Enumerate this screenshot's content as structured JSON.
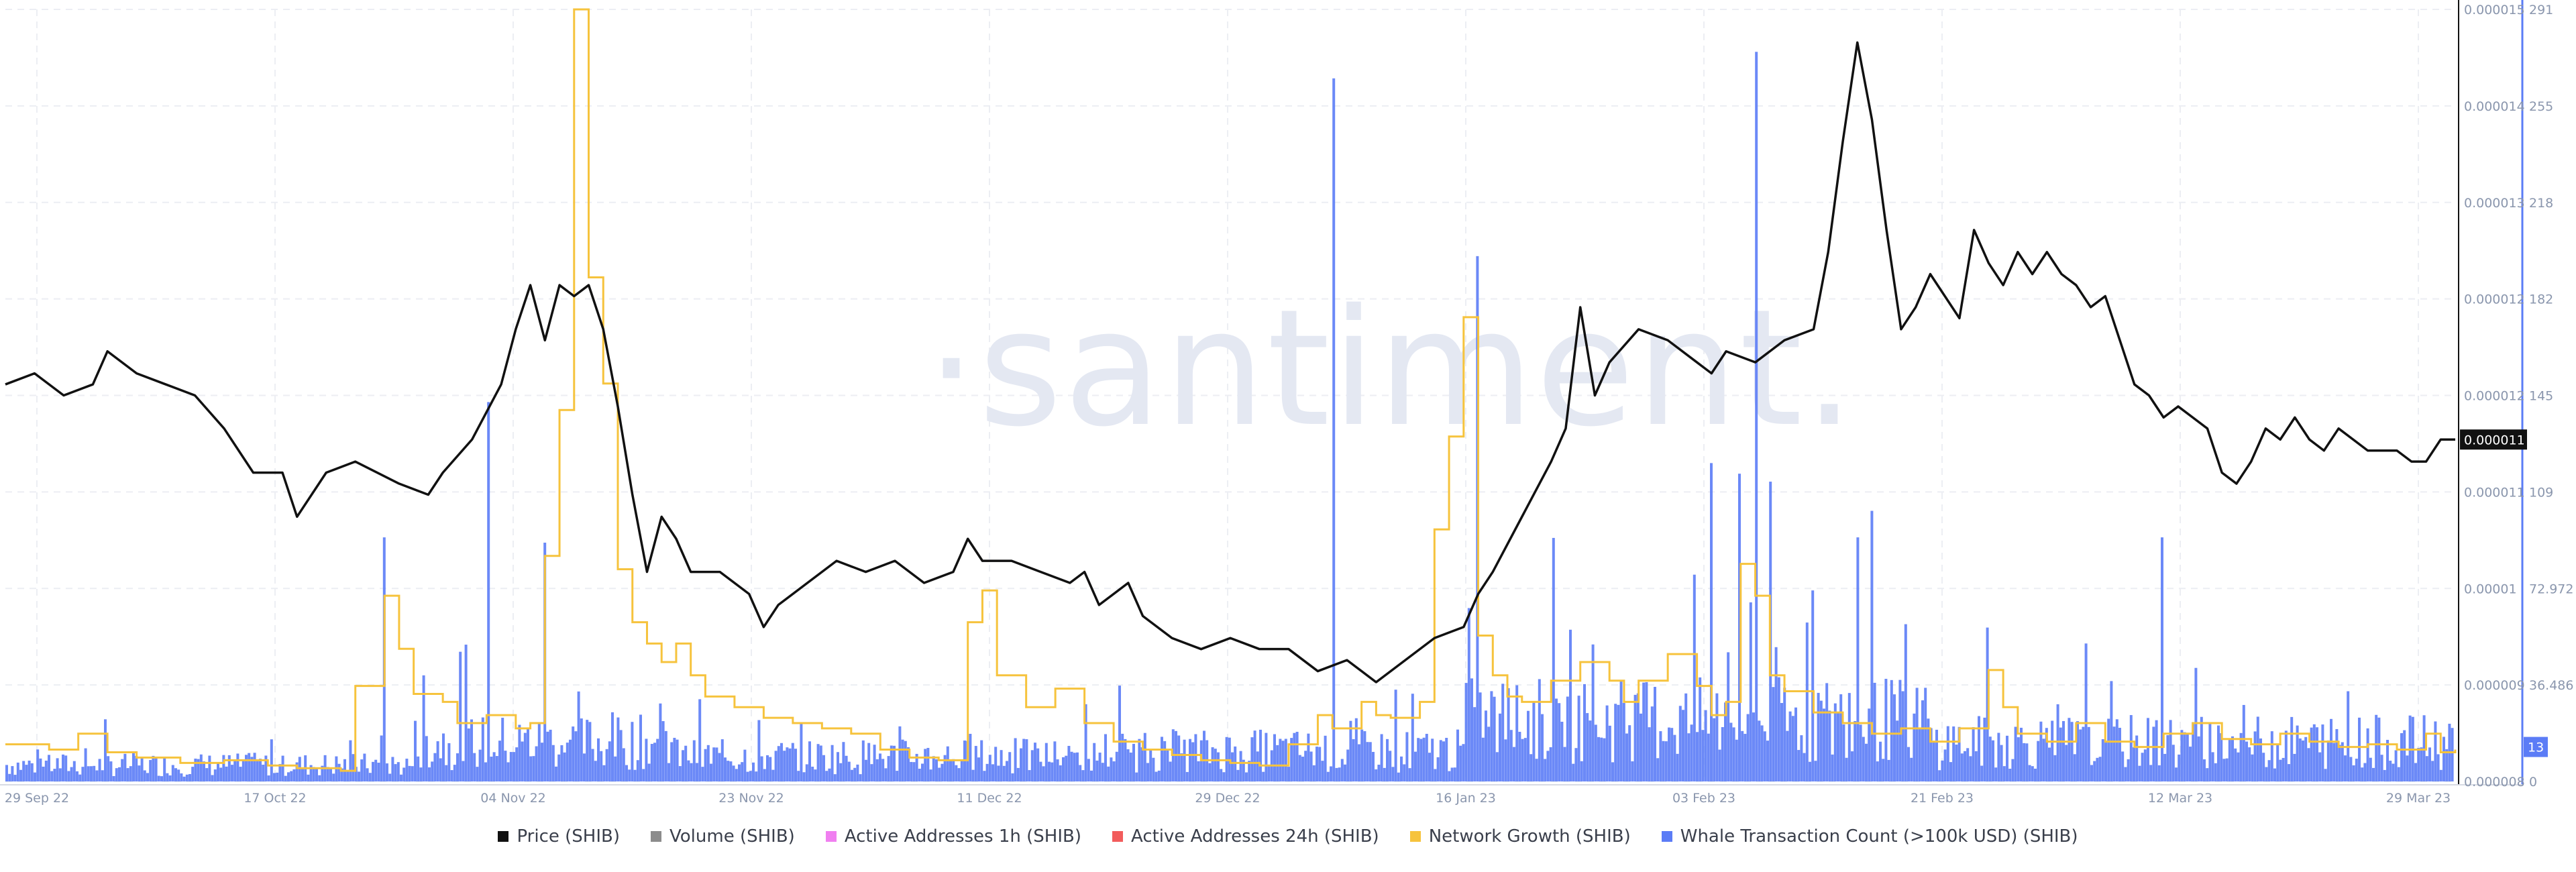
{
  "watermark": "·santiment.",
  "chart_data": {
    "type": "line",
    "x_tick_labels": [
      "29 Sep 22",
      "17 Oct 22",
      "04 Nov 22",
      "23 Nov 22",
      "11 Dec 22",
      "29 Dec 22",
      "16 Jan 23",
      "03 Feb 23",
      "21 Feb 23",
      "12 Mar 23",
      "29 Mar 23"
    ],
    "price_axis": {
      "ylim": [
        8e-06,
        1.5e-05
      ],
      "tick_labels": [
        "0.000015",
        "0.000014",
        "0.000013",
        "0.000012",
        "0.000012",
        "0.000011",
        "0.00001",
        "0.000009",
        "0.000008"
      ]
    },
    "whale_axis": {
      "ylim": [
        0,
        291
      ],
      "tick_labels": [
        "291",
        "255",
        "218",
        "182",
        "145",
        "109",
        "72.972",
        "36.486",
        "0"
      ]
    },
    "current_price_label": "0.000011",
    "current_whale_label": "13",
    "legend_position": "bottom",
    "grid": true,
    "legend": [
      {
        "name": "Price (SHIB)",
        "color": "#111111"
      },
      {
        "name": "Volume (SHIB)",
        "color": "#8c8c8c"
      },
      {
        "name": "Active Addresses 1h (SHIB)",
        "color": "#f07ff0"
      },
      {
        "name": "Active Addresses 24h (SHIB)",
        "color": "#f25c5c"
      },
      {
        "name": "Network Growth (SHIB)",
        "color": "#f6c33d"
      },
      {
        "name": "Whale Transaction Count (>100k USD) (SHIB)",
        "color": "#5b7cf6"
      }
    ],
    "series": [
      {
        "name": "Price (SHIB)",
        "color": "#111111",
        "axis": "price",
        "points": [
          [
            0,
            1.16e-05
          ],
          [
            2,
            1.17e-05
          ],
          [
            4,
            1.15e-05
          ],
          [
            6,
            1.16e-05
          ],
          [
            7,
            1.19e-05
          ],
          [
            9,
            1.17e-05
          ],
          [
            11,
            1.16e-05
          ],
          [
            13,
            1.15e-05
          ],
          [
            15,
            1.12e-05
          ],
          [
            17,
            1.08e-05
          ],
          [
            19,
            1.08e-05
          ],
          [
            20,
            1.04e-05
          ],
          [
            22,
            1.08e-05
          ],
          [
            24,
            1.09e-05
          ],
          [
            27,
            1.07e-05
          ],
          [
            29,
            1.06e-05
          ],
          [
            30,
            1.08e-05
          ],
          [
            32,
            1.11e-05
          ],
          [
            34,
            1.16e-05
          ],
          [
            35,
            1.21e-05
          ],
          [
            36,
            1.25e-05
          ],
          [
            37,
            1.2e-05
          ],
          [
            38,
            1.25e-05
          ],
          [
            39,
            1.24e-05
          ],
          [
            40,
            1.25e-05
          ],
          [
            41,
            1.21e-05
          ],
          [
            42,
            1.14e-05
          ],
          [
            43,
            1.06e-05
          ],
          [
            44,
            9.9e-06
          ],
          [
            45,
            1.04e-05
          ],
          [
            46,
            1.02e-05
          ],
          [
            47,
            9.9e-06
          ],
          [
            49,
            9.9e-06
          ],
          [
            51,
            9.7e-06
          ],
          [
            52,
            9.4e-06
          ],
          [
            53,
            9.6e-06
          ],
          [
            55,
            9.8e-06
          ],
          [
            57,
            1e-05
          ],
          [
            59,
            9.9e-06
          ],
          [
            61,
            1e-05
          ],
          [
            63,
            9.8e-06
          ],
          [
            65,
            9.9e-06
          ],
          [
            66,
            1.02e-05
          ],
          [
            67,
            1e-05
          ],
          [
            69,
            1e-05
          ],
          [
            71,
            9.9e-06
          ],
          [
            73,
            9.8e-06
          ],
          [
            74,
            9.9e-06
          ],
          [
            75,
            9.6e-06
          ],
          [
            77,
            9.8e-06
          ],
          [
            78,
            9.5e-06
          ],
          [
            80,
            9.3e-06
          ],
          [
            82,
            9.2e-06
          ],
          [
            84,
            9.3e-06
          ],
          [
            86,
            9.2e-06
          ],
          [
            88,
            9.2e-06
          ],
          [
            90,
            9e-06
          ],
          [
            92,
            9.1e-06
          ],
          [
            94,
            8.9e-06
          ],
          [
            96,
            9.1e-06
          ],
          [
            98,
            9.3e-06
          ],
          [
            100,
            9.4e-06
          ],
          [
            101,
            9.7e-06
          ],
          [
            102,
            9.9e-06
          ],
          [
            104,
            1.04e-05
          ],
          [
            106,
            1.09e-05
          ],
          [
            107,
            1.12e-05
          ],
          [
            108,
            1.23e-05
          ],
          [
            109,
            1.15e-05
          ],
          [
            110,
            1.18e-05
          ],
          [
            112,
            1.21e-05
          ],
          [
            114,
            1.2e-05
          ],
          [
            116,
            1.18e-05
          ],
          [
            117,
            1.17e-05
          ],
          [
            118,
            1.19e-05
          ],
          [
            120,
            1.18e-05
          ],
          [
            122,
            1.2e-05
          ],
          [
            124,
            1.21e-05
          ],
          [
            125,
            1.28e-05
          ],
          [
            126,
            1.38e-05
          ],
          [
            127,
            1.47e-05
          ],
          [
            128,
            1.4e-05
          ],
          [
            129,
            1.3e-05
          ],
          [
            130,
            1.21e-05
          ],
          [
            131,
            1.23e-05
          ],
          [
            132,
            1.26e-05
          ],
          [
            133,
            1.24e-05
          ],
          [
            134,
            1.22e-05
          ],
          [
            135,
            1.3e-05
          ],
          [
            136,
            1.27e-05
          ],
          [
            137,
            1.25e-05
          ],
          [
            138,
            1.28e-05
          ],
          [
            139,
            1.26e-05
          ],
          [
            140,
            1.28e-05
          ],
          [
            141,
            1.26e-05
          ],
          [
            142,
            1.25e-05
          ],
          [
            143,
            1.23e-05
          ],
          [
            144,
            1.24e-05
          ],
          [
            145,
            1.2e-05
          ],
          [
            146,
            1.16e-05
          ],
          [
            147,
            1.15e-05
          ],
          [
            148,
            1.13e-05
          ],
          [
            149,
            1.14e-05
          ],
          [
            150,
            1.13e-05
          ],
          [
            151,
            1.12e-05
          ],
          [
            152,
            1.08e-05
          ],
          [
            153,
            1.07e-05
          ],
          [
            154,
            1.09e-05
          ],
          [
            155,
            1.12e-05
          ],
          [
            156,
            1.11e-05
          ],
          [
            157,
            1.13e-05
          ],
          [
            158,
            1.11e-05
          ],
          [
            159,
            1.1e-05
          ],
          [
            160,
            1.12e-05
          ],
          [
            161,
            1.11e-05
          ],
          [
            162,
            1.1e-05
          ],
          [
            163,
            1.1e-05
          ],
          [
            164,
            1.1e-05
          ],
          [
            165,
            1.09e-05
          ],
          [
            166,
            1.09e-05
          ],
          [
            167,
            1.11e-05
          ],
          [
            168,
            1.11e-05
          ]
        ]
      },
      {
        "name": "Network Growth (SHIB)",
        "color": "#f6c33d",
        "axis": "whale",
        "points": [
          [
            0,
            14
          ],
          [
            3,
            12
          ],
          [
            5,
            18
          ],
          [
            7,
            11
          ],
          [
            9,
            9
          ],
          [
            12,
            7
          ],
          [
            15,
            8
          ],
          [
            18,
            6
          ],
          [
            20,
            5
          ],
          [
            23,
            4
          ],
          [
            24,
            36
          ],
          [
            26,
            70
          ],
          [
            27,
            50
          ],
          [
            28,
            33
          ],
          [
            30,
            30
          ],
          [
            31,
            22
          ],
          [
            33,
            25
          ],
          [
            35,
            20
          ],
          [
            36,
            22
          ],
          [
            37,
            85
          ],
          [
            38,
            140
          ],
          [
            39,
            291
          ],
          [
            40,
            190
          ],
          [
            41,
            150
          ],
          [
            42,
            80
          ],
          [
            43,
            60
          ],
          [
            44,
            52
          ],
          [
            45,
            45
          ],
          [
            46,
            52
          ],
          [
            47,
            40
          ],
          [
            48,
            32
          ],
          [
            50,
            28
          ],
          [
            52,
            24
          ],
          [
            54,
            22
          ],
          [
            56,
            20
          ],
          [
            58,
            18
          ],
          [
            60,
            12
          ],
          [
            62,
            9
          ],
          [
            64,
            8
          ],
          [
            66,
            60
          ],
          [
            67,
            72
          ],
          [
            68,
            40
          ],
          [
            70,
            28
          ],
          [
            72,
            35
          ],
          [
            74,
            22
          ],
          [
            76,
            15
          ],
          [
            78,
            12
          ],
          [
            80,
            10
          ],
          [
            82,
            8
          ],
          [
            84,
            7
          ],
          [
            86,
            6
          ],
          [
            88,
            14
          ],
          [
            90,
            25
          ],
          [
            91,
            20
          ],
          [
            93,
            30
          ],
          [
            94,
            25
          ],
          [
            95,
            24
          ],
          [
            97,
            30
          ],
          [
            98,
            95
          ],
          [
            99,
            130
          ],
          [
            100,
            175
          ],
          [
            101,
            55
          ],
          [
            102,
            40
          ],
          [
            103,
            32
          ],
          [
            104,
            30
          ],
          [
            106,
            38
          ],
          [
            108,
            45
          ],
          [
            110,
            38
          ],
          [
            111,
            30
          ],
          [
            112,
            38
          ],
          [
            114,
            48
          ],
          [
            116,
            36
          ],
          [
            117,
            25
          ],
          [
            118,
            30
          ],
          [
            119,
            82
          ],
          [
            120,
            70
          ],
          [
            121,
            40
          ],
          [
            122,
            34
          ],
          [
            124,
            26
          ],
          [
            126,
            22
          ],
          [
            128,
            18
          ],
          [
            130,
            20
          ],
          [
            132,
            15
          ],
          [
            134,
            20
          ],
          [
            136,
            42
          ],
          [
            137,
            28
          ],
          [
            138,
            18
          ],
          [
            140,
            15
          ],
          [
            142,
            22
          ],
          [
            144,
            15
          ],
          [
            146,
            13
          ],
          [
            148,
            18
          ],
          [
            150,
            22
          ],
          [
            152,
            16
          ],
          [
            154,
            14
          ],
          [
            156,
            18
          ],
          [
            158,
            15
          ],
          [
            160,
            13
          ],
          [
            162,
            14
          ],
          [
            164,
            12
          ],
          [
            166,
            18
          ],
          [
            167,
            11
          ],
          [
            168,
            12
          ]
        ]
      },
      {
        "name": "Whale Transaction Count (>100k USD) (SHIB)",
        "color": "#5b7cf6",
        "axis": "whale",
        "spikes": [
          [
            26,
            92
          ],
          [
            33,
            143
          ],
          [
            37,
            90
          ],
          [
            91,
            265
          ],
          [
            101,
            198
          ],
          [
            104,
            16
          ],
          [
            117,
            120
          ],
          [
            119,
            116
          ],
          [
            120,
            275
          ],
          [
            121,
            113
          ],
          [
            124,
            72
          ],
          [
            127,
            92
          ],
          [
            128,
            102
          ],
          [
            136,
            58
          ],
          [
            148,
            92
          ]
        ]
      }
    ]
  }
}
